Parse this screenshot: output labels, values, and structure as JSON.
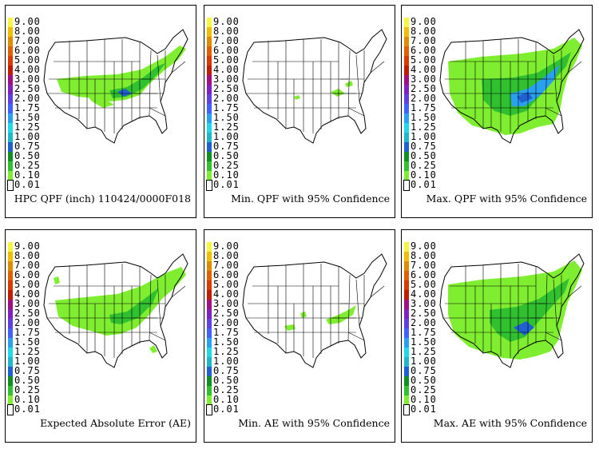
{
  "legend": {
    "levels": [
      "9.00",
      "8.00",
      "7.00",
      "6.00",
      "5.00",
      "4.00",
      "3.00",
      "2.50",
      "2.00",
      "1.75",
      "1.50",
      "1.25",
      "1.00",
      "0.75",
      "0.50",
      "0.25",
      "0.10",
      "0.01"
    ],
    "colors": [
      "#f5f542",
      "#f0c000",
      "#e08c00",
      "#e06000",
      "#d93a00",
      "#c01c00",
      "#a01080",
      "#8020c0",
      "#6040e0",
      "#4060ff",
      "#2aa0f0",
      "#20d8e8",
      "#20b8c8",
      "#2060d0",
      "#109020",
      "#30c030",
      "#80ee30",
      "#ffffff"
    ]
  },
  "panels": [
    {
      "caption": "HPC QPF (inch) 110424/0000F018",
      "precip": "qpf"
    },
    {
      "caption": "Min. QPF with 95% Confidence",
      "precip": "minqpf"
    },
    {
      "caption": "Max. QPF with 95% Confidence",
      "precip": "maxqpf"
    },
    {
      "caption": "Expected Absolute Error (AE)",
      "precip": "ae"
    },
    {
      "caption": "Min. AE with 95% Confidence",
      "precip": "minae"
    },
    {
      "caption": "Max. AE with 95% Confidence",
      "precip": "maxae"
    }
  ]
}
